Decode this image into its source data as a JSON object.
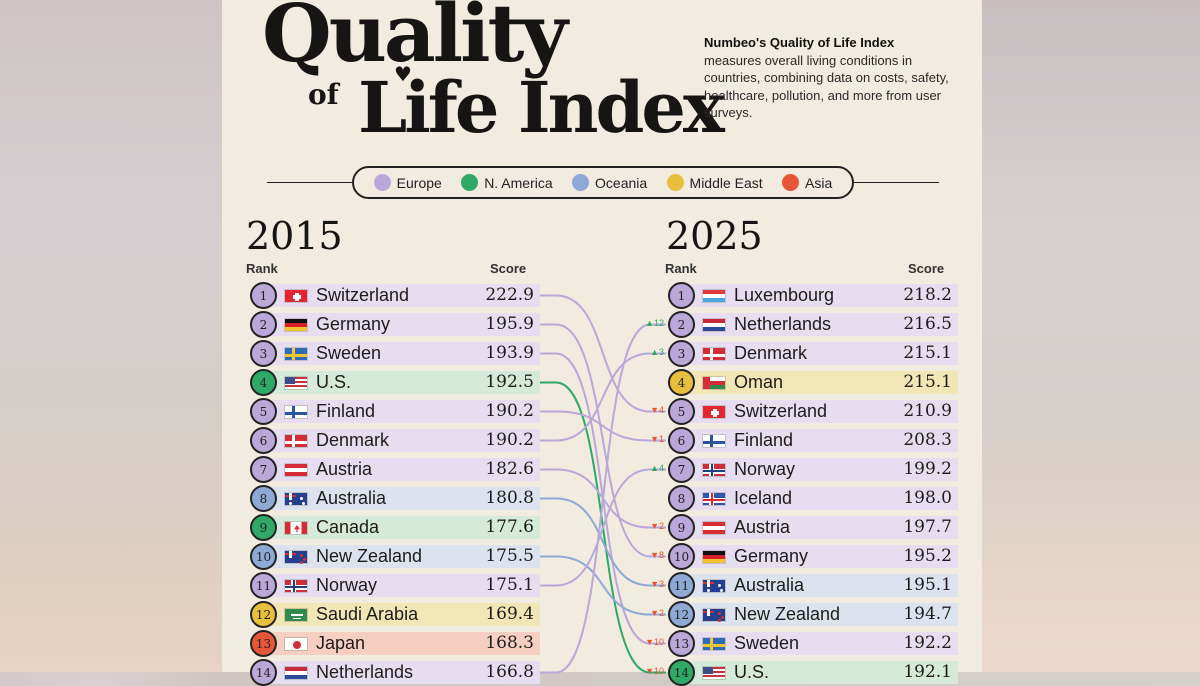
{
  "header": {
    "title_line1": "Quality",
    "title_of": "of",
    "title_line2": "Life Index",
    "desc_bold": "Numbeo's Quality of Life Index",
    "desc_rest": "measures overall living conditions in countries, combining data on costs, safety, healthcare, pollution, and more from user surveys."
  },
  "colors": {
    "Europe": "#b9a8d8",
    "N. America": "#2eaa66",
    "Oceania": "#8fa9d6",
    "Middle East": "#e8bf3c",
    "Asia": "#e85638",
    "bar_Europe": "#e6def0",
    "bar_N. America": "#d5ead8",
    "bar_Oceania": "#dde3ee",
    "bar_Middle East": "#f3e6b6",
    "bar_Asia": "#f6cfc2"
  },
  "chart_data": {
    "type": "table",
    "title": "Quality of Life Index",
    "legend": [
      {
        "label": "Europe",
        "region": "Europe"
      },
      {
        "label": "N. America",
        "region": "N. America"
      },
      {
        "label": "Oceania",
        "region": "Oceania"
      },
      {
        "label": "Middle East",
        "region": "Middle East"
      },
      {
        "label": "Asia",
        "region": "Asia"
      }
    ],
    "left": {
      "year": "2015",
      "rank_label": "Rank",
      "score_label": "Score",
      "rows": [
        {
          "rank": "1",
          "country": "Switzerland",
          "score": "222.9",
          "region": "Europe",
          "flag": "ch"
        },
        {
          "rank": "2",
          "country": "Germany",
          "score": "195.9",
          "region": "Europe",
          "flag": "de"
        },
        {
          "rank": "3",
          "country": "Sweden",
          "score": "193.9",
          "region": "Europe",
          "flag": "se"
        },
        {
          "rank": "4",
          "country": "U.S.",
          "score": "192.5",
          "region": "N. America",
          "flag": "us"
        },
        {
          "rank": "5",
          "country": "Finland",
          "score": "190.2",
          "region": "Europe",
          "flag": "fi"
        },
        {
          "rank": "6",
          "country": "Denmark",
          "score": "190.2",
          "region": "Europe",
          "flag": "dk"
        },
        {
          "rank": "7",
          "country": "Austria",
          "score": "182.6",
          "region": "Europe",
          "flag": "at"
        },
        {
          "rank": "8",
          "country": "Australia",
          "score": "180.8",
          "region": "Oceania",
          "flag": "au"
        },
        {
          "rank": "9",
          "country": "Canada",
          "score": "177.6",
          "region": "N. America",
          "flag": "ca"
        },
        {
          "rank": "10",
          "country": "New Zealand",
          "score": "175.5",
          "region": "Oceania",
          "flag": "nz"
        },
        {
          "rank": "11",
          "country": "Norway",
          "score": "175.1",
          "region": "Europe",
          "flag": "no"
        },
        {
          "rank": "12",
          "country": "Saudi Arabia",
          "score": "169.4",
          "region": "Middle East",
          "flag": "sa"
        },
        {
          "rank": "13",
          "country": "Japan",
          "score": "168.3",
          "region": "Asia",
          "flag": "jp"
        },
        {
          "rank": "14",
          "country": "Netherlands",
          "score": "166.8",
          "region": "Europe",
          "flag": "nl"
        }
      ]
    },
    "right": {
      "year": "2025",
      "rank_label": "Rank",
      "score_label": "Score",
      "rows": [
        {
          "rank": "1",
          "country": "Luxembourg",
          "score": "218.2",
          "region": "Europe",
          "flag": "lu",
          "change": ""
        },
        {
          "rank": "2",
          "country": "Netherlands",
          "score": "216.5",
          "region": "Europe",
          "flag": "nl",
          "change": "▲12"
        },
        {
          "rank": "3",
          "country": "Denmark",
          "score": "215.1",
          "region": "Europe",
          "flag": "dk",
          "change": "▲3"
        },
        {
          "rank": "4",
          "country": "Oman",
          "score": "215.1",
          "region": "Middle East",
          "flag": "om",
          "change": ""
        },
        {
          "rank": "5",
          "country": "Switzerland",
          "score": "210.9",
          "region": "Europe",
          "flag": "ch",
          "change": "▼4"
        },
        {
          "rank": "6",
          "country": "Finland",
          "score": "208.3",
          "region": "Europe",
          "flag": "fi",
          "change": "▼1"
        },
        {
          "rank": "7",
          "country": "Norway",
          "score": "199.2",
          "region": "Europe",
          "flag": "no",
          "change": "▲4"
        },
        {
          "rank": "8",
          "country": "Iceland",
          "score": "198.0",
          "region": "Europe",
          "flag": "is",
          "change": ""
        },
        {
          "rank": "9",
          "country": "Austria",
          "score": "197.7",
          "region": "Europe",
          "flag": "at",
          "change": "▼2"
        },
        {
          "rank": "10",
          "country": "Germany",
          "score": "195.2",
          "region": "Europe",
          "flag": "de",
          "change": "▼8"
        },
        {
          "rank": "11",
          "country": "Australia",
          "score": "195.1",
          "region": "Oceania",
          "flag": "au",
          "change": "▼3"
        },
        {
          "rank": "12",
          "country": "New Zealand",
          "score": "194.7",
          "region": "Oceania",
          "flag": "nz",
          "change": "▼2"
        },
        {
          "rank": "13",
          "country": "Sweden",
          "score": "192.2",
          "region": "Europe",
          "flag": "se",
          "change": "▼10"
        },
        {
          "rank": "14",
          "country": "U.S.",
          "score": "192.1",
          "region": "N. America",
          "flag": "us",
          "change": "▼10"
        }
      ]
    }
  }
}
